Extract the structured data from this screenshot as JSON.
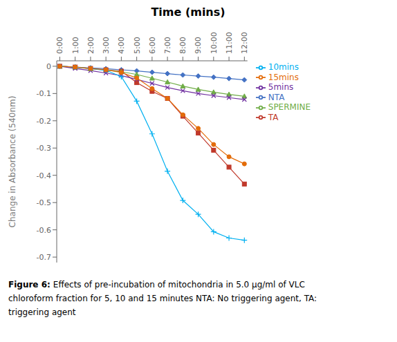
{
  "chart_data": {
    "type": "line",
    "title": "Time (mins)",
    "y_label": "Change in Absorbance (540nm)",
    "caption_bold": "Figure 6:",
    "caption": [
      "Effects of pre-incubation of mitochondria in 5.0 μg/ml of VLC",
      "chloroform fraction for 5, 10 and 15 minutes NTA: No triggering agent, TA:",
      "triggering agent"
    ],
    "x": [
      0,
      1,
      2,
      3,
      4,
      5,
      6,
      7,
      8,
      9,
      10,
      11,
      12
    ],
    "xlim": [
      -0.2,
      12.2
    ],
    "xticks": [
      {
        "value": 0,
        "label": "0:00"
      },
      {
        "value": 1,
        "label": "1:00"
      },
      {
        "value": 2,
        "label": "2:00"
      },
      {
        "value": 3,
        "label": "3:00"
      },
      {
        "value": 4,
        "label": "4:00"
      },
      {
        "value": 5,
        "label": "5:00"
      },
      {
        "value": 6,
        "label": "6:00"
      },
      {
        "value": 7,
        "label": "7:00"
      },
      {
        "value": 8,
        "label": "8:00"
      },
      {
        "value": 9,
        "label": "9:00"
      },
      {
        "value": 10,
        "label": "10:00"
      },
      {
        "value": 11,
        "label": "11:00"
      },
      {
        "value": 12,
        "label": "12:00"
      }
    ],
    "ylim": [
      -0.72,
      0.02
    ],
    "yticks": [
      0,
      -0.1,
      -0.2,
      -0.3,
      -0.4,
      -0.5,
      -0.6,
      -0.7
    ],
    "grid": false,
    "legend": "right",
    "series": [
      {
        "name": "NTA",
        "color": "#4472C4",
        "marker": "diamond",
        "values": [
          0,
          -0.003,
          -0.006,
          -0.009,
          -0.013,
          -0.017,
          -0.022,
          -0.027,
          -0.032,
          -0.036,
          -0.04,
          -0.045,
          -0.05
        ]
      },
      {
        "name": "TA",
        "color": "#C0392B",
        "marker": "square",
        "values": [
          0,
          -0.003,
          -0.008,
          -0.013,
          -0.018,
          -0.06,
          -0.092,
          -0.118,
          -0.183,
          -0.245,
          -0.308,
          -0.37,
          -0.432
        ]
      },
      {
        "name": "SPERMINE",
        "color": "#70AD47",
        "marker": "triangle",
        "values": [
          0,
          -0.004,
          -0.009,
          -0.014,
          -0.02,
          -0.03,
          -0.044,
          -0.058,
          -0.073,
          -0.085,
          -0.095,
          -0.103,
          -0.11
        ]
      },
      {
        "name": "5mins",
        "color": "#7030A0",
        "marker": "x",
        "values": [
          0,
          -0.008,
          -0.016,
          -0.025,
          -0.034,
          -0.048,
          -0.063,
          -0.078,
          -0.09,
          -0.1,
          -0.108,
          -0.115,
          -0.122
        ]
      },
      {
        "name": "10mins",
        "color": "#00B0F0",
        "marker": "plus",
        "values": [
          0,
          -0.003,
          -0.008,
          -0.015,
          -0.038,
          -0.128,
          -0.248,
          -0.385,
          -0.492,
          -0.543,
          -0.607,
          -0.63,
          -0.638
        ]
      },
      {
        "name": "15mins",
        "color": "#E36C09",
        "marker": "circle",
        "values": [
          0,
          -0.003,
          -0.008,
          -0.013,
          -0.023,
          -0.043,
          -0.082,
          -0.118,
          -0.178,
          -0.228,
          -0.287,
          -0.332,
          -0.358
        ]
      }
    ]
  }
}
